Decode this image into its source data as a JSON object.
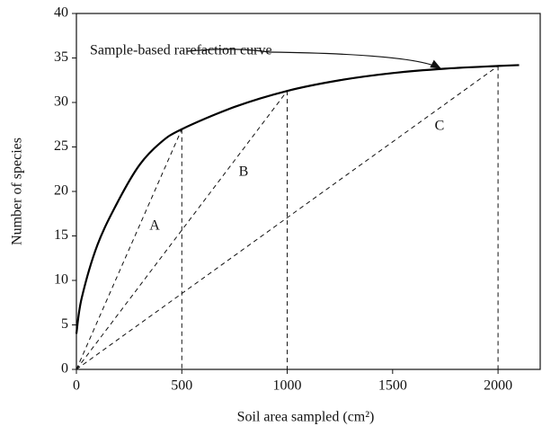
{
  "chart_data": {
    "type": "line",
    "x_label": "Soil area sampled (cm²)",
    "y_label": "Number of species",
    "annotations": [
      "Sample-based rarefaction curve",
      "A",
      "B",
      "C"
    ],
    "series": [
      {
        "name": "Sample-based rarefaction curve",
        "color": "#000000",
        "x": [
          0,
          25,
          100,
          200,
          300,
          400,
          500,
          750,
          1000,
          1250,
          1500,
          1750,
          2000,
          2100
        ],
        "values": [
          4,
          8,
          14,
          19,
          23,
          25.5,
          27,
          29.5,
          31.3,
          32.5,
          33.3,
          33.8,
          34.1,
          34.2
        ]
      }
    ],
    "xlim": [
      0,
      2200
    ],
    "xticks": [
      0,
      500,
      1000,
      1500,
      2000
    ],
    "ylim": [
      0,
      40
    ],
    "yticks": [
      0,
      5,
      10,
      15,
      20,
      25,
      30,
      35,
      40
    ],
    "grid": false
  }
}
